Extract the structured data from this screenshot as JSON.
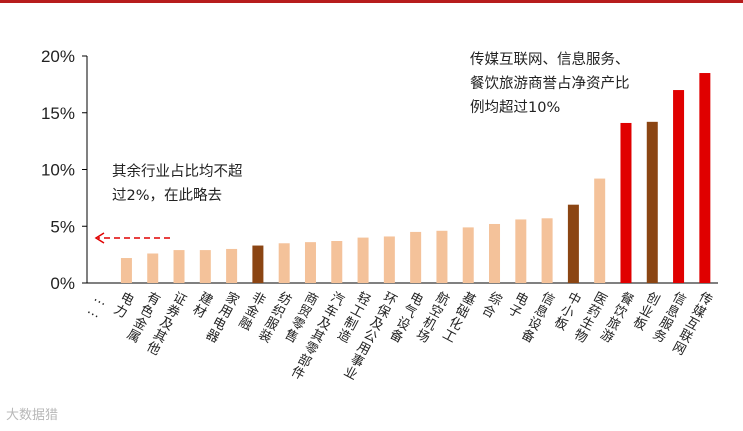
{
  "chart_data": {
    "type": "bar",
    "title": "",
    "xlabel": "",
    "ylabel": "",
    "ylim": [
      0,
      20
    ],
    "yticks": [
      "0%",
      "5%",
      "10%",
      "15%",
      "20%"
    ],
    "grid": false,
    "categories": [
      "……",
      "电力",
      "有色金属",
      "证券及其他",
      "建材",
      "家用电器",
      "非金融",
      "纺织服装",
      "商贸零售",
      "汽车及其零部件",
      "轻工制造",
      "环保及公用事业",
      "电气设备",
      "航空机场",
      "基础化工",
      "综合",
      "电子",
      "信息设备",
      "中小板",
      "医药生物",
      "餐饮旅游",
      "创业板",
      "信息服务",
      "传媒互联网"
    ],
    "values": [
      null,
      2.2,
      2.6,
      2.9,
      2.9,
      3.0,
      3.3,
      3.5,
      3.6,
      3.7,
      4.0,
      4.1,
      4.5,
      4.6,
      4.9,
      5.2,
      5.6,
      5.7,
      6.9,
      9.2,
      14.1,
      14.2,
      17.0,
      18.5
    ],
    "colors": [
      "",
      "#f4c29a",
      "#f4c29a",
      "#f4c29a",
      "#f4c29a",
      "#f4c29a",
      "#8b4513",
      "#f4c29a",
      "#f4c29a",
      "#f4c29a",
      "#f4c29a",
      "#f4c29a",
      "#f4c29a",
      "#f4c29a",
      "#f4c29a",
      "#f4c29a",
      "#f4c29a",
      "#f4c29a",
      "#8b4513",
      "#f4c29a",
      "#e00000",
      "#8b4513",
      "#e00000",
      "#e00000"
    ],
    "annotations": {
      "left_note": [
        "其余行业占比均不超",
        "过2%，在此略去"
      ],
      "right_note": [
        "传媒互联网、信息服务、",
        "餐饮旅游商誉占净资产比",
        "例均超过10%"
      ]
    }
  },
  "colors": {
    "top_rule": "#b71c1c",
    "arrow": "#e00000",
    "axis": "#000000"
  },
  "watermark": "大数据猎"
}
